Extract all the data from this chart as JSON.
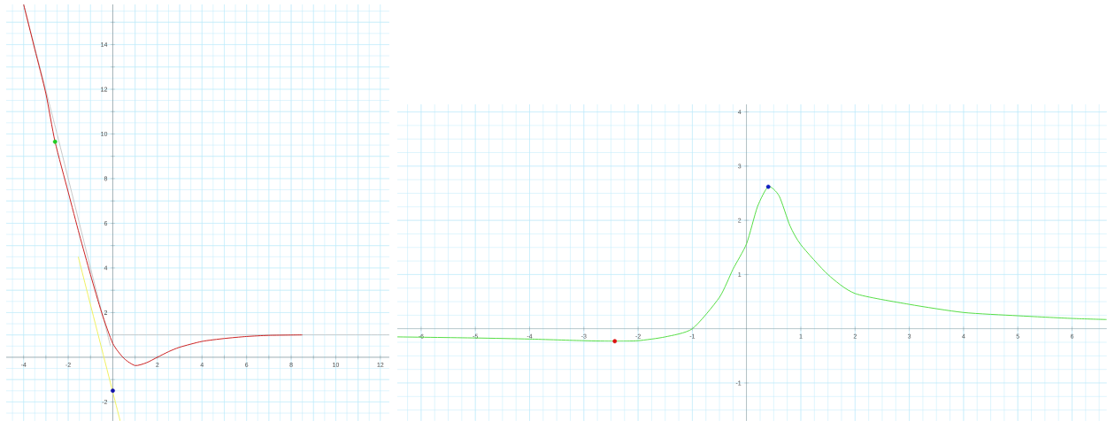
{
  "chart_data": [
    {
      "type": "line",
      "xlim": [
        -4.78,
        12.4
      ],
      "ylim": [
        -2.85,
        15.8
      ],
      "grid": true,
      "marker": "none",
      "xticks": [
        -4,
        {
          "value": -3,
          "label": null
        },
        -2,
        {
          "value": -1,
          "label": null
        },
        {
          "value": 1,
          "label": null
        },
        2,
        {
          "value": 3,
          "label": null
        },
        4,
        {
          "value": 5,
          "label": null
        },
        6,
        {
          "value": 7,
          "label": null
        },
        8,
        {
          "value": 9,
          "label": null
        },
        10,
        {
          "value": 11,
          "label": null
        },
        12
      ],
      "yticks": [
        {
          "value": -1,
          "label": null
        },
        -2,
        {
          "value": 1,
          "label": null
        },
        2,
        {
          "value": 3,
          "label": null
        },
        4,
        {
          "value": 5,
          "label": null
        },
        6,
        {
          "value": 7,
          "label": null
        },
        8,
        {
          "value": 9,
          "label": null
        },
        10,
        {
          "value": 11,
          "label": null
        },
        12,
        {
          "value": 13,
          "label": null
        },
        14,
        {
          "value": 15,
          "label": null
        }
      ],
      "series": [
        {
          "type": "line",
          "color": "#c8c8c8",
          "x": [
            -4.0,
            -2.5,
            -1.0,
            -0.1
          ],
          "values": [
            15.8,
            10.0,
            4.0,
            0.5
          ]
        },
        {
          "type": "line",
          "color": "#c8c8c8",
          "x": [
            0,
            12.4
          ],
          "values": [
            1.0,
            1.0
          ]
        },
        {
          "type": "line",
          "color": "#f0f060",
          "x": [
            -1.55,
            0.33
          ],
          "values": [
            4.5,
            -2.85
          ]
        },
        {
          "color": "#cc2222",
          "x": [
            -4.0,
            -3.5,
            -3.0,
            -2.59,
            -2.0,
            -1.5,
            -1.0,
            -0.5,
            0,
            0.5,
            1.0,
            1.5,
            2.0,
            2.5,
            3.0,
            4.0,
            5.0,
            6.0,
            7.0,
            8.5
          ],
          "values": [
            15.8,
            13.8,
            11.8,
            9.65,
            7.4,
            5.5,
            3.7,
            2.0,
            0.62,
            -0.05,
            -0.37,
            -0.25,
            0,
            0.25,
            0.45,
            0.71,
            0.84,
            0.93,
            0.98,
            1.0
          ]
        },
        {
          "type": "scatter",
          "marker": "circle",
          "color": "#22cc22",
          "x": [
            -2.59
          ],
          "values": [
            9.65
          ]
        },
        {
          "type": "scatter",
          "marker": "circle",
          "color": "#1010aa",
          "x": [
            0
          ],
          "values": [
            -1.5
          ]
        }
      ]
    },
    {
      "type": "line",
      "xlim": [
        -6.44,
        6.64
      ],
      "ylim": [
        -1.7,
        4.14
      ],
      "grid": true,
      "marker": "none",
      "xticks": [
        -6,
        -5,
        -4,
        -3,
        -2,
        -1,
        1,
        2,
        3,
        4,
        5,
        6
      ],
      "yticks": [
        -1,
        1,
        2,
        3,
        4
      ],
      "series": [
        {
          "color": "#55dd44",
          "x": [
            -6.44,
            -5,
            -4,
            -3,
            -2.43,
            -2,
            -1.5,
            -1,
            -0.5,
            -0.25,
            0,
            0.2,
            0.4,
            0.6,
            0.8,
            1.0,
            1.5,
            2,
            3,
            4,
            5,
            6,
            6.64
          ],
          "values": [
            -0.15,
            -0.17,
            -0.19,
            -0.22,
            -0.23,
            -0.22,
            -0.15,
            0,
            0.58,
            1.1,
            1.57,
            2.25,
            2.62,
            2.45,
            1.9,
            1.55,
            1.0,
            0.65,
            0.45,
            0.3,
            0.24,
            0.19,
            0.17
          ]
        },
        {
          "type": "scatter",
          "marker": "circle",
          "color": "#dd1111",
          "x": [
            -2.43
          ],
          "values": [
            -0.23
          ]
        },
        {
          "type": "scatter",
          "marker": "circle",
          "color": "#1020c0",
          "x": [
            0.4
          ],
          "values": [
            2.62
          ]
        }
      ]
    }
  ]
}
